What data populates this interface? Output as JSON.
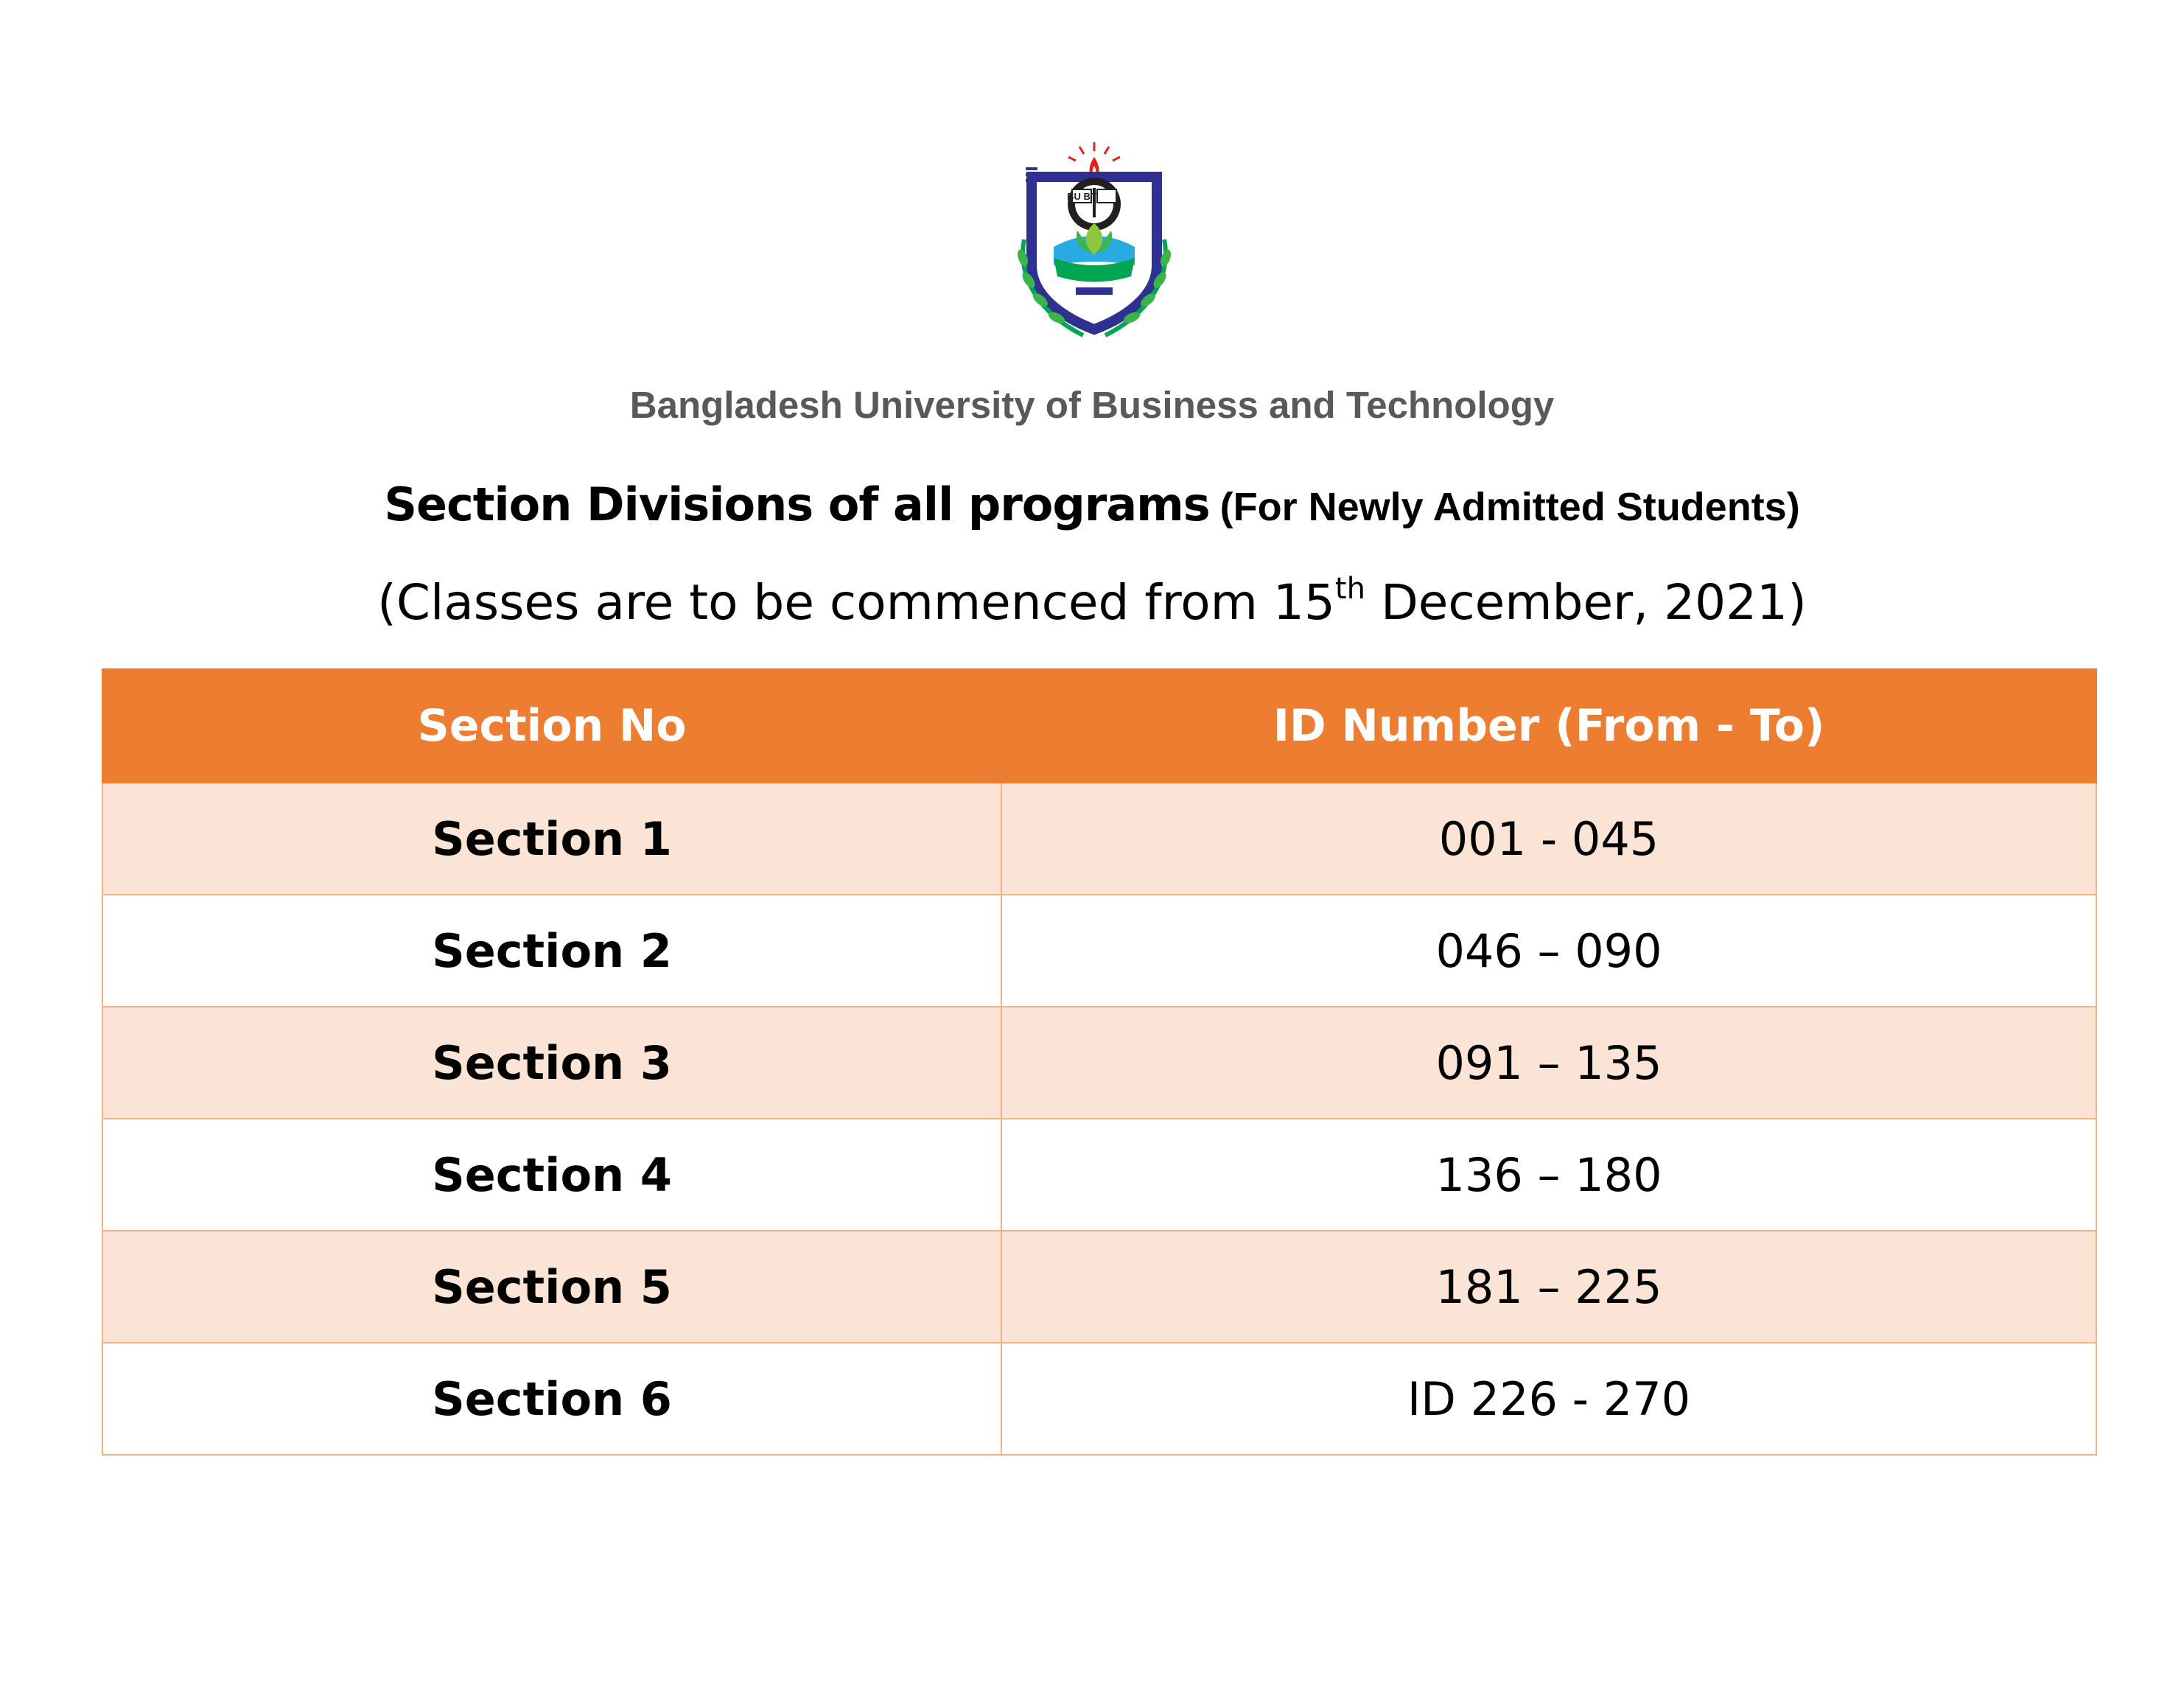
{
  "logo": {
    "name": "BUBT crest",
    "text_top": "BU BT",
    "text_ring": "BANGLADESH UNIVERSITY OF BUSINESS & TECHNOLOGY"
  },
  "header": {
    "university": "Bangladesh University of Business and Technology",
    "title": "Section Divisions of all programs",
    "subtitle": "(For Newly Admitted Students)",
    "commence_before": "(Classes are to be commenced from 15",
    "commence_sup": "th",
    "commence_after": " December, 2021)"
  },
  "table": {
    "headers": [
      "Section No",
      "ID Number (From - To)"
    ],
    "rows": [
      {
        "section": "Section 1",
        "ids": "001 - 045"
      },
      {
        "section": "Section 2",
        "ids": "046 – 090"
      },
      {
        "section": "Section 3",
        "ids": "091 – 135"
      },
      {
        "section": "Section 4",
        "ids": "136 – 180"
      },
      {
        "section": "Section 5",
        "ids": "181 – 225"
      },
      {
        "section": "Section 6",
        "ids": "ID 226 - 270"
      }
    ]
  },
  "colors": {
    "header_bg": "#ed7d31",
    "band_bg": "#fbe4d5",
    "border": "#f4b183",
    "university_text": "#595959"
  }
}
